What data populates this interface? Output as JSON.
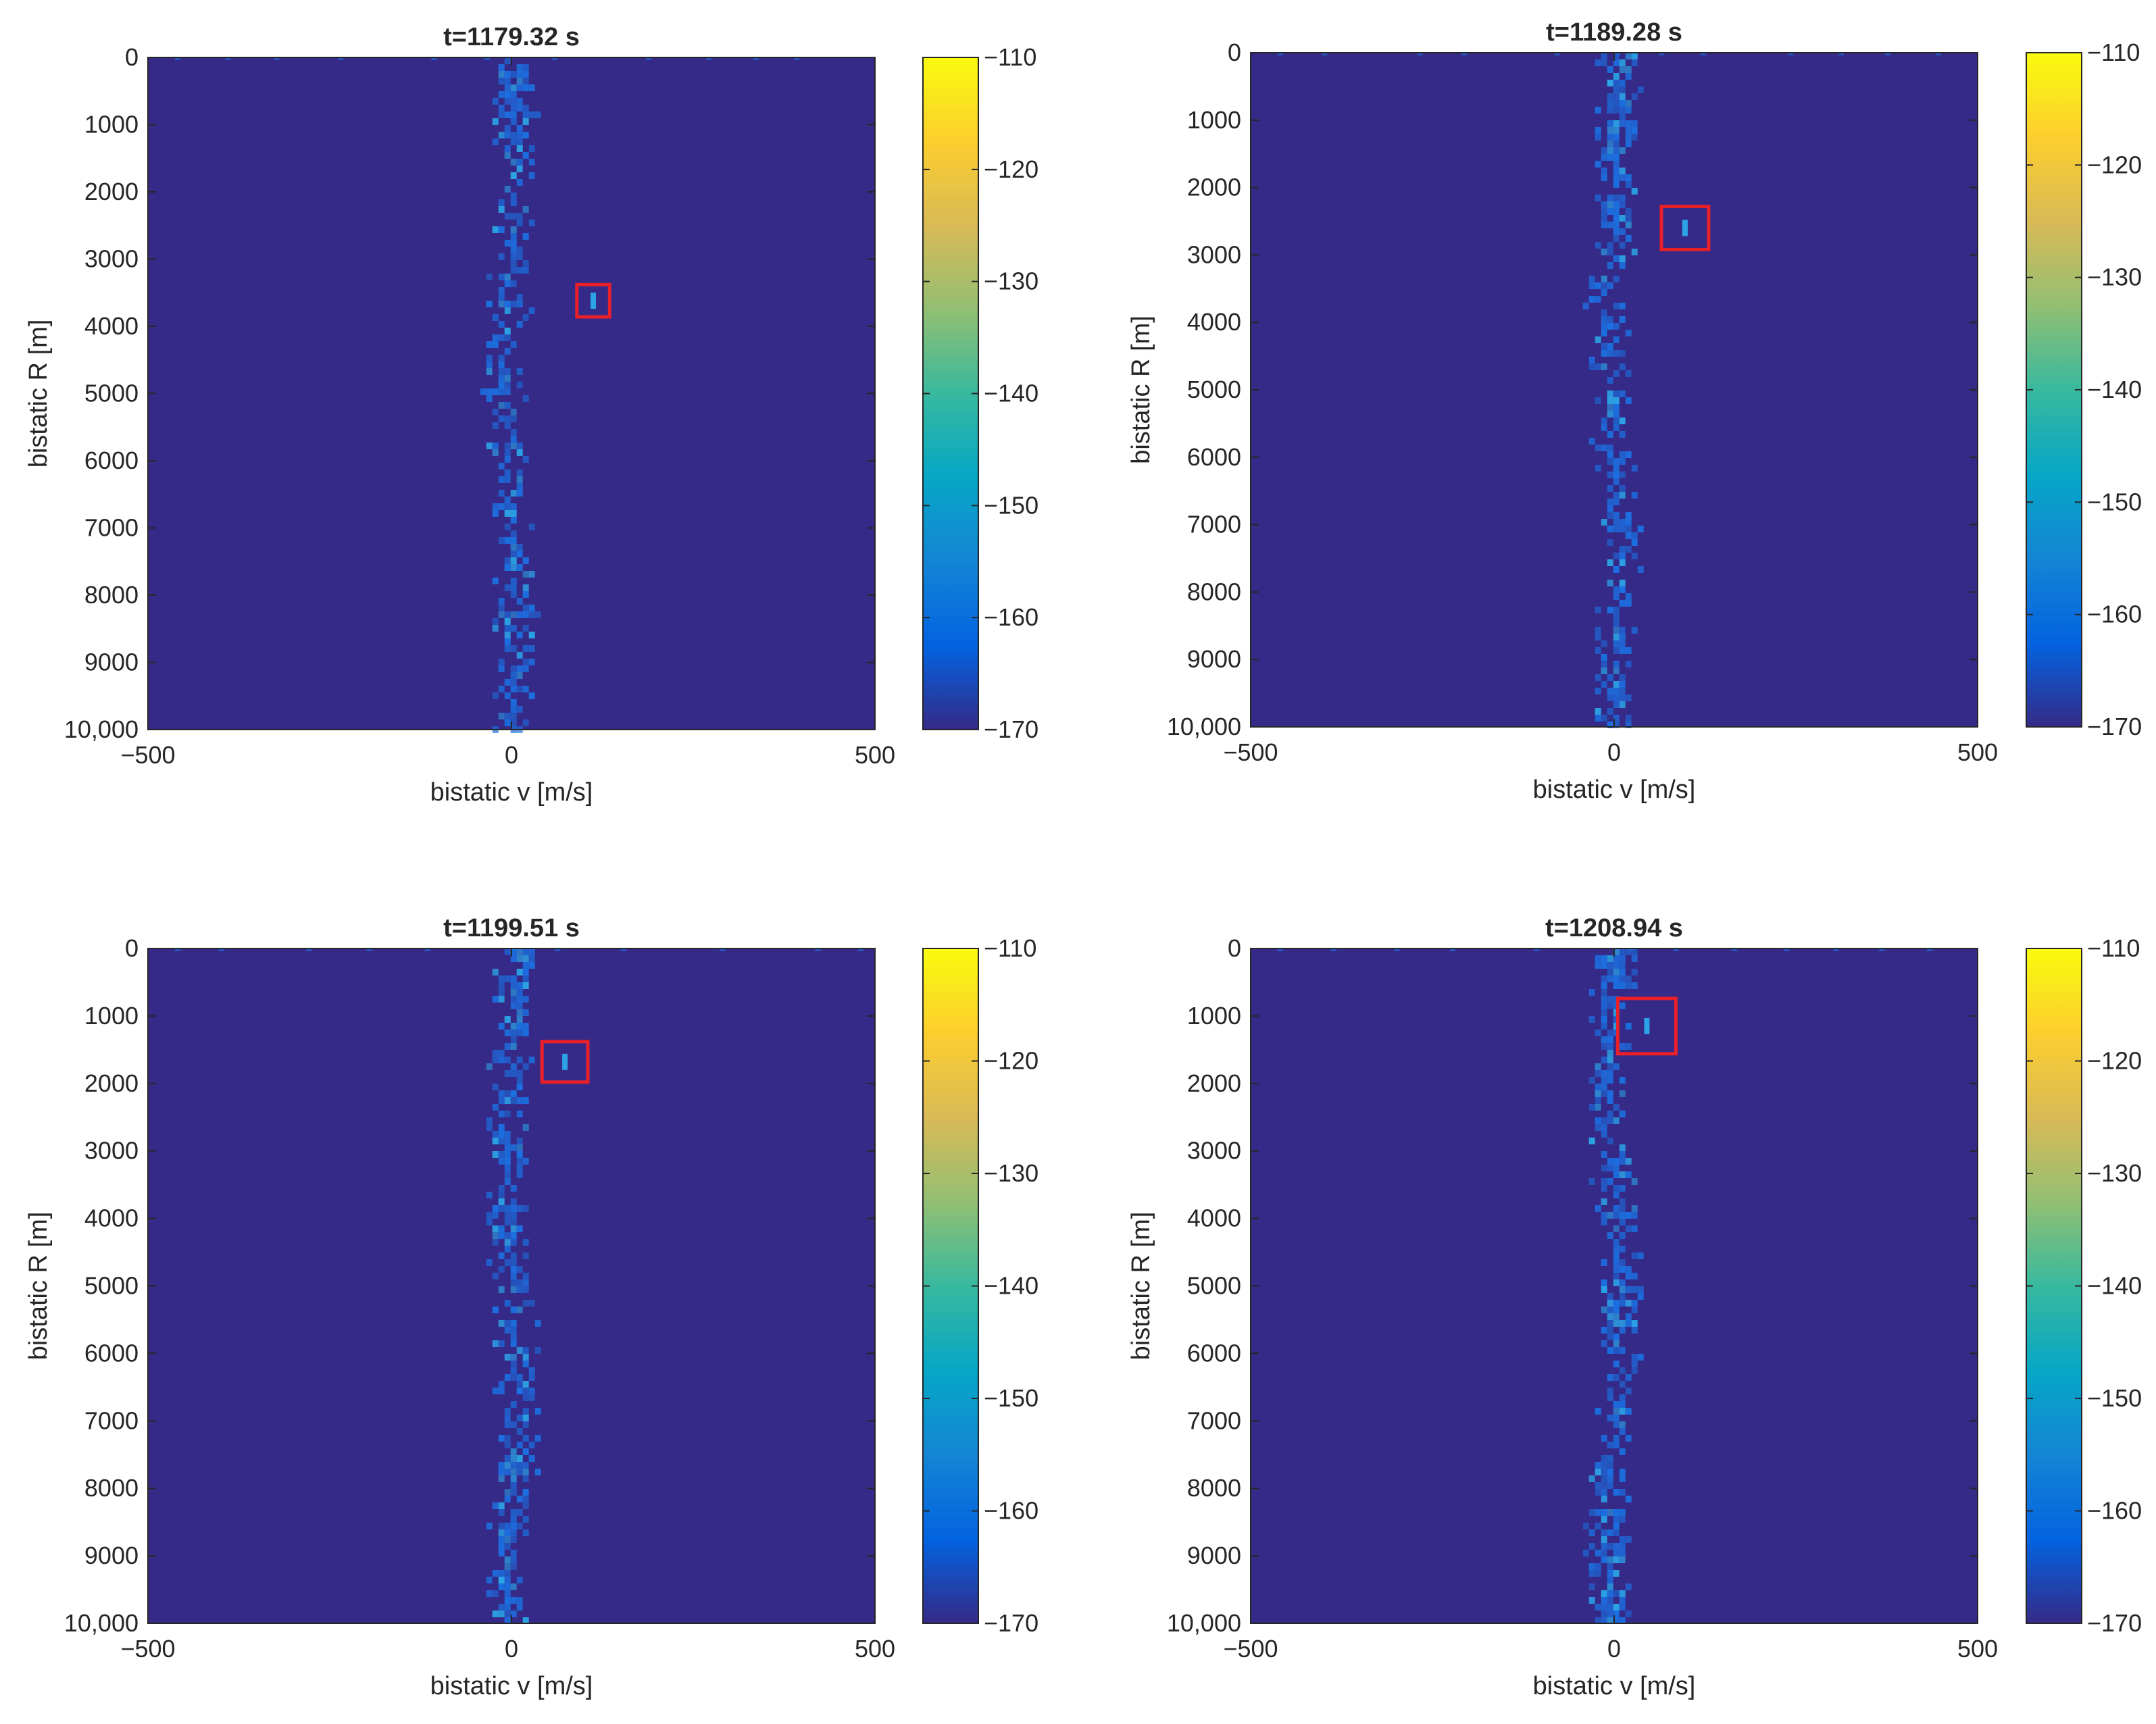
{
  "colors": {
    "background": "#352a87",
    "clutter": "#1c6fe0",
    "clutter_bright": "#2ba3e6",
    "highlight_box": "#e8202a",
    "axis": "#262626"
  },
  "colormap": {
    "name": "parula",
    "stops": [
      "#352a87",
      "#0363e1",
      "#1485d4",
      "#06a7c6",
      "#38b99e",
      "#92bf73",
      "#d9ba56",
      "#fcce2e",
      "#f9fb0e"
    ]
  },
  "chart_data": [
    {
      "type": "heatmap",
      "title": "t=1179.32 s",
      "xlabel": "bistatic v [m/s]",
      "ylabel": "bistatic R [m]",
      "xlim": [
        -500,
        500
      ],
      "ylim": [
        0,
        10000
      ],
      "xticks": [
        -500,
        0,
        500
      ],
      "xtick_labels": [
        "−500",
        "0",
        "500"
      ],
      "yticks": [
        0,
        1000,
        2000,
        3000,
        4000,
        5000,
        6000,
        7000,
        8000,
        9000,
        10000
      ],
      "ytick_labels": [
        "0",
        "1000",
        "2000",
        "3000",
        "4000",
        "5000",
        "6000",
        "7000",
        "8000",
        "9000",
        "10,000"
      ],
      "colorbar": {
        "clim": [
          -170,
          -110
        ],
        "ticks": [
          -110,
          -120,
          -130,
          -140,
          -150,
          -160,
          -170
        ],
        "tick_labels": [
          "−110",
          "−120",
          "−130",
          "−140",
          "−150",
          "−160",
          "−170"
        ]
      },
      "clutter_ridge": {
        "v_center": 0,
        "v_half_width": 30
      },
      "target_box": {
        "v_range": [
          90,
          135
        ],
        "r_range": [
          3380,
          3860
        ]
      }
    },
    {
      "type": "heatmap",
      "title": "t=1189.28 s",
      "xlabel": "bistatic v [m/s]",
      "ylabel": "bistatic R [m]",
      "xlim": [
        -500,
        500
      ],
      "ylim": [
        0,
        10000
      ],
      "xticks": [
        -500,
        0,
        500
      ],
      "xtick_labels": [
        "−500",
        "0",
        "500"
      ],
      "yticks": [
        0,
        1000,
        2000,
        3000,
        4000,
        5000,
        6000,
        7000,
        8000,
        9000,
        10000
      ],
      "ytick_labels": [
        "0",
        "1000",
        "2000",
        "3000",
        "4000",
        "5000",
        "6000",
        "7000",
        "8000",
        "9000",
        "10,000"
      ],
      "colorbar": {
        "clim": [
          -170,
          -110
        ],
        "ticks": [
          -110,
          -120,
          -130,
          -140,
          -150,
          -160,
          -170
        ],
        "tick_labels": [
          "−110",
          "−120",
          "−130",
          "−140",
          "−150",
          "−160",
          "−170"
        ]
      },
      "clutter_ridge": {
        "v_center": 0,
        "v_half_width": 30
      },
      "target_box": {
        "v_range": [
          65,
          130
        ],
        "r_range": [
          2280,
          2920
        ]
      }
    },
    {
      "type": "heatmap",
      "title": "t=1199.51 s",
      "xlabel": "bistatic v [m/s]",
      "ylabel": "bistatic R [m]",
      "xlim": [
        -500,
        500
      ],
      "ylim": [
        0,
        10000
      ],
      "xticks": [
        -500,
        0,
        500
      ],
      "xtick_labels": [
        "−500",
        "0",
        "500"
      ],
      "yticks": [
        0,
        1000,
        2000,
        3000,
        4000,
        5000,
        6000,
        7000,
        8000,
        9000,
        10000
      ],
      "ytick_labels": [
        "0",
        "1000",
        "2000",
        "3000",
        "4000",
        "5000",
        "6000",
        "7000",
        "8000",
        "9000",
        "10,000"
      ],
      "colorbar": {
        "clim": [
          -170,
          -110
        ],
        "ticks": [
          -110,
          -120,
          -130,
          -140,
          -150,
          -160,
          -170
        ],
        "tick_labels": [
          "−110",
          "−120",
          "−130",
          "−140",
          "−150",
          "−160",
          "−170"
        ]
      },
      "clutter_ridge": {
        "v_center": 0,
        "v_half_width": 30
      },
      "target_box": {
        "v_range": [
          42,
          105
        ],
        "r_range": [
          1380,
          1980
        ]
      }
    },
    {
      "type": "heatmap",
      "title": "t=1208.94 s",
      "xlabel": "bistatic v [m/s]",
      "ylabel": "bistatic R [m]",
      "xlim": [
        -500,
        500
      ],
      "ylim": [
        0,
        10000
      ],
      "xticks": [
        -500,
        0,
        500
      ],
      "xtick_labels": [
        "−500",
        "0",
        "500"
      ],
      "yticks": [
        0,
        1000,
        2000,
        3000,
        4000,
        5000,
        6000,
        7000,
        8000,
        9000,
        10000
      ],
      "ytick_labels": [
        "0",
        "1000",
        "2000",
        "3000",
        "4000",
        "5000",
        "6000",
        "7000",
        "8000",
        "9000",
        "10,000"
      ],
      "colorbar": {
        "clim": [
          -170,
          -110
        ],
        "ticks": [
          -110,
          -120,
          -130,
          -140,
          -150,
          -160,
          -170
        ],
        "tick_labels": [
          "−110",
          "−120",
          "−130",
          "−140",
          "−150",
          "−160",
          "−170"
        ]
      },
      "clutter_ridge": {
        "v_center": 0,
        "v_half_width": 30
      },
      "target_box": {
        "v_range": [
          5,
          85
        ],
        "r_range": [
          740,
          1560
        ]
      }
    }
  ]
}
